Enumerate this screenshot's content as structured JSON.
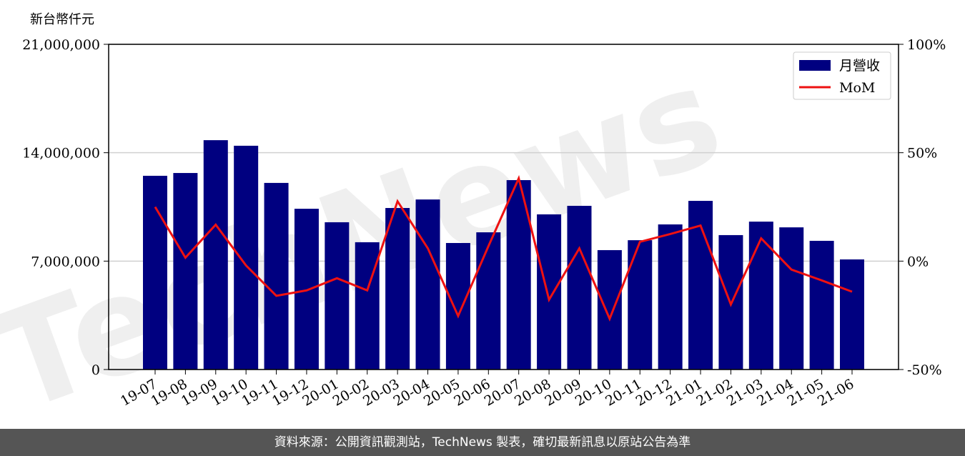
{
  "chart_data": {
    "type": "bar-line",
    "y_label": "新台幣仟元",
    "watermark": "TechNews",
    "categories": [
      "19-07",
      "19-08",
      "19-09",
      "19-10",
      "19-11",
      "19-12",
      "20-01",
      "20-02",
      "20-03",
      "20-04",
      "20-05",
      "20-06",
      "20-07",
      "20-08",
      "20-09",
      "20-10",
      "20-11",
      "20-12",
      "21-01",
      "21-02",
      "21-03",
      "21-04",
      "21-05",
      "21-06"
    ],
    "series": [
      {
        "name": "月營收",
        "type": "bar",
        "color": "#000080",
        "values": [
          12510000,
          12690000,
          14810000,
          14450000,
          12050000,
          10380000,
          9510000,
          8220000,
          10430000,
          10980000,
          8170000,
          8860000,
          12230000,
          10020000,
          10570000,
          7710000,
          8350000,
          9370000,
          10890000,
          8680000,
          9550000,
          9180000,
          8310000,
          7110000
        ]
      },
      {
        "name": "MoM",
        "type": "line",
        "axis": "y2",
        "color": "#ee1111",
        "values": [
          25,
          1.6,
          16.8,
          -2,
          -16,
          -13.5,
          -7.9,
          -13.5,
          27.6,
          5.9,
          -25.3,
          6.9,
          38.2,
          -17.8,
          5.9,
          -26.6,
          8.9,
          12.5,
          16.4,
          -20,
          10.5,
          -3.9,
          -8.9,
          -14.1
        ]
      }
    ],
    "ylim": [
      0,
      21000000
    ],
    "yticks": [
      0,
      {
        "value": 7000000,
        "label": "7,000,000"
      },
      {
        "value": 14000000,
        "label": "14,000,000"
      },
      {
        "value": 21000000,
        "label": "21,000,000"
      }
    ],
    "y2lim": [
      -50,
      100
    ],
    "y2ticks": [
      {
        "value": -50,
        "label": "-50%"
      },
      {
        "value": 0,
        "label": "0%"
      },
      {
        "value": 50,
        "label": "50%"
      },
      {
        "value": 100,
        "label": "100%"
      }
    ],
    "grid": true,
    "legend": "upper right"
  },
  "footer": "資料來源：公開資訊觀測站，TechNews 製表，確切最新訊息以原站公告為準"
}
